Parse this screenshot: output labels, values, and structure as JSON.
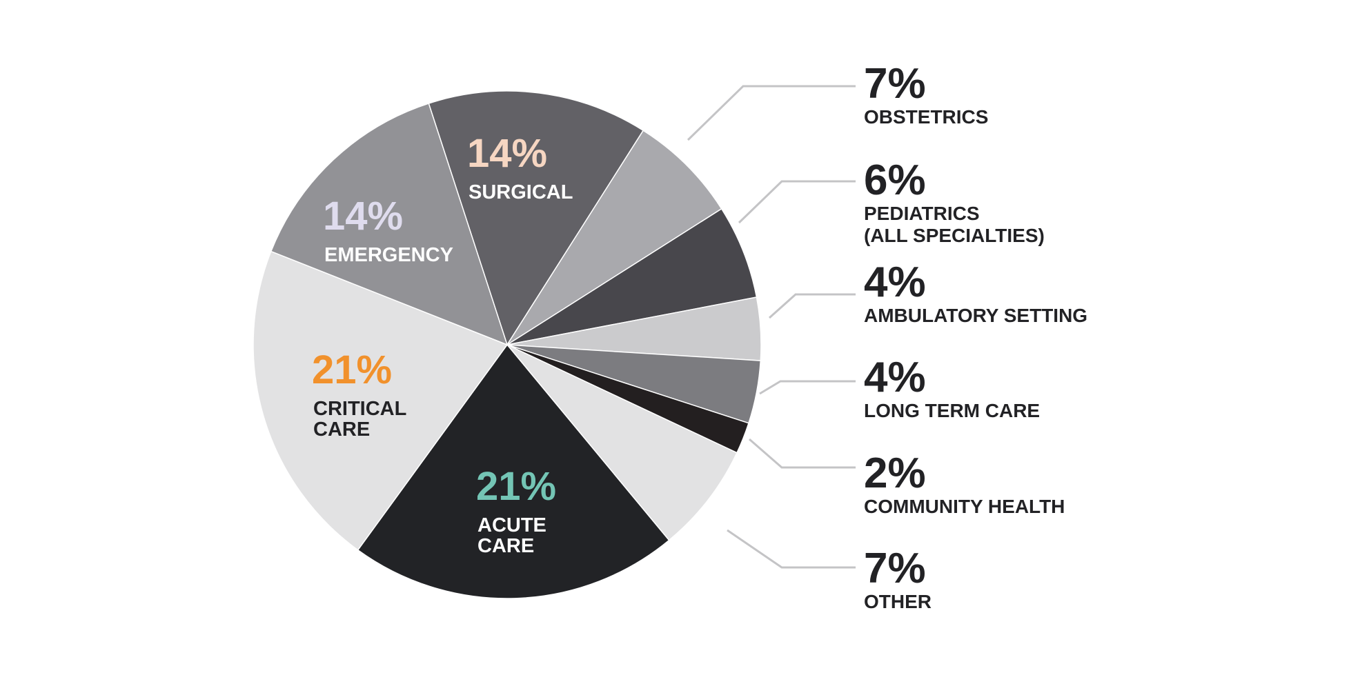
{
  "chart_data": {
    "type": "pie",
    "slices": [
      {
        "label": "SURGICAL",
        "value": 14,
        "value_label": "14%",
        "color": "#626166",
        "value_color": "#f6d6c2",
        "label_color": "#ffffff"
      },
      {
        "label": "OBSTETRICS",
        "value": 7,
        "value_label": "7%",
        "color": "#a9a9ad"
      },
      {
        "label": "PEDIATRICS (ALL SPECIALTIES)",
        "label_lines": [
          "PEDIATRICS",
          "(ALL SPECIALTIES)"
        ],
        "value": 6,
        "value_label": "6%",
        "color": "#48474c"
      },
      {
        "label": "AMBULATORY SETTING",
        "value": 4,
        "value_label": "4%",
        "color": "#cbcbcd"
      },
      {
        "label": "LONG TERM CARE",
        "value": 4,
        "value_label": "4%",
        "color": "#7c7c80"
      },
      {
        "label": "COMMUNITY HEALTH",
        "value": 2,
        "value_label": "2%",
        "color": "#231f20"
      },
      {
        "label": "OTHER",
        "value": 7,
        "value_label": "7%",
        "color": "#e2e2e3"
      },
      {
        "label": "ACUTE CARE",
        "label_lines": [
          "ACUTE",
          "CARE"
        ],
        "value": 21,
        "value_label": "21%",
        "color": "#222326",
        "value_color": "#74c5b5",
        "label_color": "#ffffff"
      },
      {
        "label": "CRITICAL CARE",
        "label_lines": [
          "CRITICAL",
          "CARE"
        ],
        "value": 21,
        "value_label": "21%",
        "color": "#e2e2e3",
        "value_color": "#f1912c",
        "label_color": "#222225"
      },
      {
        "label": "EMERGENCY",
        "value": 14,
        "value_label": "14%",
        "color": "#929296",
        "value_color": "#dfdcee",
        "label_color": "#ffffff"
      }
    ],
    "start_direction": "clockwise from upper-left",
    "legend": "right"
  }
}
